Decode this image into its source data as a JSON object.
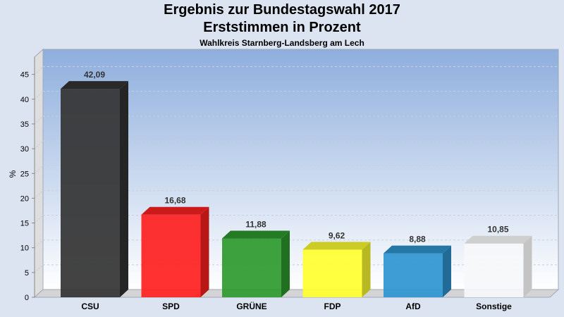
{
  "chart_data": {
    "type": "bar",
    "title": "Ergebnis zur Bundestagswahl 2017",
    "subtitle": "Erststimmen in Prozent",
    "subsubtitle": "Wahlkreis Starnberg-Landsberg am Lech",
    "xlabel": "",
    "ylabel": "%",
    "ylim": [
      0,
      48.5
    ],
    "yticks": [
      0,
      5,
      10,
      15,
      20,
      25,
      30,
      35,
      40,
      45
    ],
    "grid": true,
    "categories": [
      "CSU",
      "SPD",
      "GRÜNE",
      "FDP",
      "AfD",
      "Sonstige"
    ],
    "values": [
      42.09,
      16.68,
      11.88,
      9.62,
      8.88,
      10.85
    ],
    "labels": [
      "42,09",
      "16,68",
      "11,88",
      "9,62",
      "8,88",
      "10,85"
    ],
    "colors": [
      "#333333",
      "#ff2020",
      "#2e9a2e",
      "#ffff30",
      "#2e95d0",
      "#ffffff"
    ]
  }
}
